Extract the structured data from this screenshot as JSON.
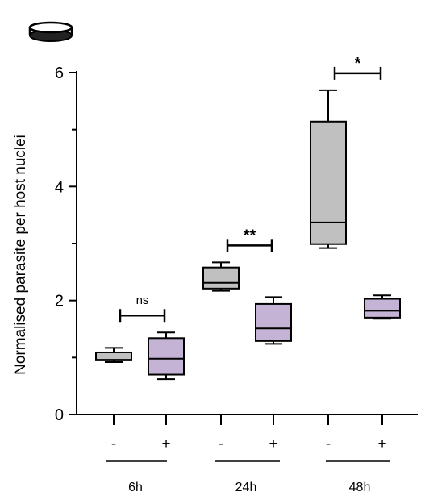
{
  "chart_data": {
    "type": "box",
    "title": "",
    "xlabel": "",
    "ylabel": "Normalised parasite per host nuclei",
    "ylim": [
      0,
      6
    ],
    "yticks": [
      0,
      2,
      4,
      6
    ],
    "y_minor_ticks": [
      1,
      3,
      5
    ],
    "grid": false,
    "legend": "none",
    "icon": "petri-dish-icon",
    "colors": {
      "minus": "#c0c0c0",
      "plus": "#c5b3d6",
      "stroke": "#000000"
    },
    "groups": [
      {
        "label": "6h",
        "boxes": [
          {
            "condition": "-",
            "min": 0.92,
            "q1": 0.95,
            "median": 0.96,
            "q3": 1.09,
            "max": 1.17
          },
          {
            "condition": "+",
            "min": 0.62,
            "q1": 0.7,
            "median": 0.98,
            "q3": 1.34,
            "max": 1.44
          }
        ],
        "significance": "ns"
      },
      {
        "label": "24h",
        "boxes": [
          {
            "condition": "-",
            "min": 2.17,
            "q1": 2.21,
            "median": 2.31,
            "q3": 2.58,
            "max": 2.67
          },
          {
            "condition": "+",
            "min": 1.24,
            "q1": 1.29,
            "median": 1.51,
            "q3": 1.94,
            "max": 2.06
          }
        ],
        "significance": "**"
      },
      {
        "label": "48h",
        "boxes": [
          {
            "condition": "-",
            "min": 2.92,
            "q1": 2.99,
            "median": 3.37,
            "q3": 5.14,
            "max": 5.69
          },
          {
            "condition": "+",
            "min": 1.68,
            "q1": 1.7,
            "median": 1.82,
            "q3": 2.03,
            "max": 2.09
          }
        ],
        "significance": "*"
      }
    ]
  }
}
